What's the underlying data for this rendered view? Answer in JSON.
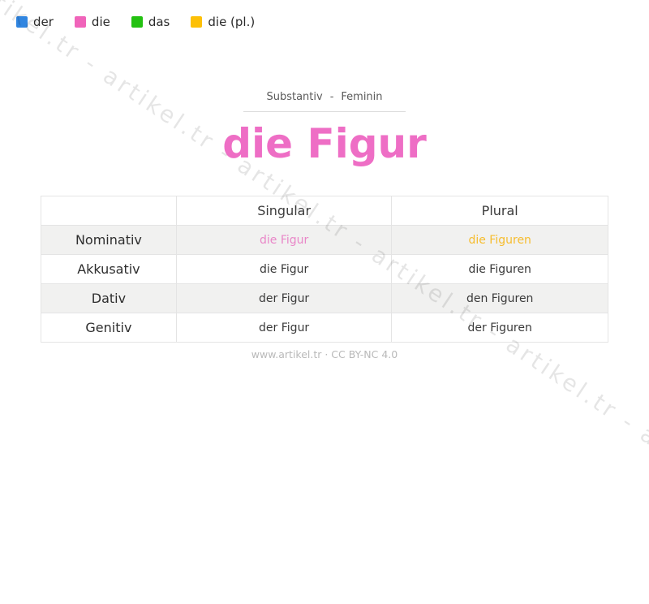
{
  "colors": {
    "der_blue": "#3085e0",
    "die_pink": "#f064ba",
    "das_green": "#23c111",
    "die_pl_yellow": "#fdc006",
    "title_pink": "#ee6ec5",
    "cell_pink": "#e987c8",
    "cell_yellow": "#f6bd2f",
    "row_shade": "#f1f1f0"
  },
  "legend": {
    "items": [
      {
        "label": "der",
        "color": "#3085e0"
      },
      {
        "label": "die",
        "color": "#f064ba"
      },
      {
        "label": "das",
        "color": "#23c111"
      },
      {
        "label": "die (pl.)",
        "color": "#fdc006"
      }
    ]
  },
  "header": {
    "word_type": "Substantiv",
    "separator": "-",
    "gender": "Feminin"
  },
  "title": "die Figur",
  "table": {
    "col_headers": {
      "singular": "Singular",
      "plural": "Plural"
    },
    "rows": [
      {
        "case": "Nominativ",
        "singular": "die Figur",
        "plural": "die Figuren"
      },
      {
        "case": "Akkusativ",
        "singular": "die Figur",
        "plural": "die Figuren"
      },
      {
        "case": "Dativ",
        "singular": "der Figur",
        "plural": "den Figuren"
      },
      {
        "case": "Genitiv",
        "singular": "der Figur",
        "plural": "der Figuren"
      }
    ]
  },
  "footer": {
    "text": "www.artikel.tr · CC BY-NC 4.0"
  },
  "watermark": {
    "unit": "artikel.tr",
    "repeated": "artikel.tr - artikel.tr - artikel.tr - artikel.tr - artikel.tr - artikel.tr - artikel.tr"
  }
}
